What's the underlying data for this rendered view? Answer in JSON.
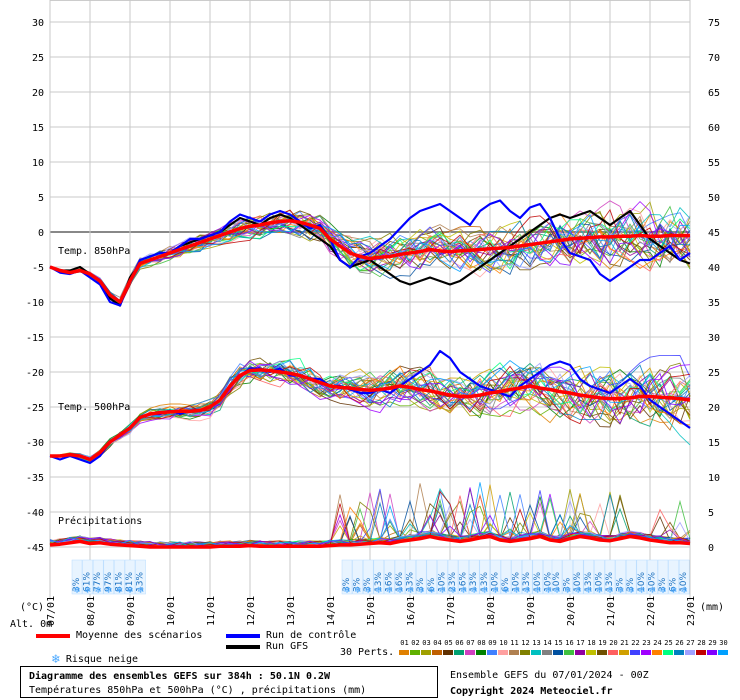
{
  "chart_data": {
    "type": "line",
    "title": "Diagramme des ensembles GEFS sur 384h : 50.1N 0.2W",
    "subtitle": "Températures 850hPa et 500hPa (°C) , précipitations (mm)",
    "y_left_unit": "(°C)",
    "y_right_unit": "(mm)",
    "y_left_ticks": [
      30,
      25,
      20,
      15,
      10,
      5,
      0,
      -5,
      -10,
      -15,
      -20,
      -25,
      -30,
      -35,
      -40,
      -45
    ],
    "y_right_ticks": [
      75,
      70,
      65,
      60,
      55,
      50,
      45,
      40,
      35,
      30,
      25,
      20,
      15,
      10,
      5,
      0
    ],
    "x_ticks": [
      "07/01",
      "08/01",
      "09/01",
      "10/01",
      "11/01",
      "12/01",
      "13/01",
      "14/01",
      "15/01",
      "16/01",
      "17/01",
      "18/01",
      "19/01",
      "20/01",
      "21/01",
      "22/01",
      "23/01"
    ],
    "x_start": "07/01 00Z",
    "x_step_hours": 6,
    "ylim_left": [
      -45,
      30
    ],
    "annotations": [
      "Temp. 850hPa",
      "Temp. 500hPa",
      "Précipitations"
    ],
    "grid": true,
    "series": [
      {
        "name": "Moyenne des scénarios",
        "color": "#ff0000",
        "level": "850hPa",
        "y": [
          -5.0,
          -5.5,
          -5.8,
          -5.5,
          -6.0,
          -7.0,
          -9.0,
          -10.0,
          -7.0,
          -4.5,
          -4.0,
          -3.5,
          -3.0,
          -2.5,
          -2.0,
          -1.5,
          -1.0,
          -0.5,
          0.0,
          0.5,
          0.8,
          1.0,
          1.3,
          1.5,
          1.6,
          1.4,
          1.0,
          0.5,
          -1.0,
          -2.0,
          -3.0,
          -3.5,
          -3.8,
          -3.6,
          -3.5,
          -3.2,
          -3.0,
          -2.8,
          -2.5,
          -2.7,
          -2.8,
          -2.7,
          -2.6,
          -2.5,
          -2.4,
          -2.3,
          -2.2,
          -2.0,
          -1.8,
          -1.6,
          -1.4,
          -1.2,
          -1.0,
          -0.9,
          -0.8,
          -0.7,
          -0.7,
          -0.6,
          -0.6,
          -0.5,
          -0.6,
          -0.6,
          -0.5,
          -0.5,
          -0.5
        ]
      },
      {
        "name": "Moyenne des scénarios",
        "color": "#ff0000",
        "level": "500hPa",
        "y": [
          -32.0,
          -32.0,
          -31.8,
          -32.0,
          -32.5,
          -31.5,
          -30.0,
          -29.0,
          -28.0,
          -26.5,
          -26.0,
          -25.8,
          -25.7,
          -25.6,
          -25.6,
          -25.5,
          -25.0,
          -24.0,
          -22.0,
          -20.5,
          -19.8,
          -19.7,
          -19.8,
          -20.0,
          -20.2,
          -20.5,
          -21.0,
          -21.5,
          -22.0,
          -22.2,
          -22.3,
          -22.5,
          -22.6,
          -22.5,
          -22.3,
          -22.0,
          -22.2,
          -22.5,
          -22.7,
          -23.0,
          -23.3,
          -23.5,
          -23.5,
          -23.3,
          -23.0,
          -22.8,
          -22.5,
          -22.3,
          -22.0,
          -22.3,
          -22.5,
          -22.8,
          -23.0,
          -23.3,
          -23.5,
          -23.7,
          -23.8,
          -23.8,
          -23.7,
          -23.5,
          -23.5,
          -23.6,
          -23.7,
          -23.8,
          -24.0
        ]
      },
      {
        "name": "Moyenne des scénarios",
        "color": "#ff0000",
        "level": "précipitations (mm)",
        "y": [
          0.3,
          0.4,
          0.6,
          0.8,
          0.5,
          0.6,
          0.4,
          0.3,
          0.2,
          0.1,
          0.0,
          0.0,
          0.0,
          0.0,
          0.0,
          0.0,
          0.0,
          0.1,
          0.1,
          0.1,
          0.2,
          0.1,
          0.1,
          0.1,
          0.1,
          0.1,
          0.1,
          0.1,
          0.2,
          0.3,
          0.3,
          0.4,
          0.5,
          0.6,
          0.5,
          0.8,
          1.0,
          1.2,
          1.5,
          1.2,
          1.0,
          0.8,
          1.0,
          1.3,
          1.5,
          1.0,
          0.8,
          1.0,
          1.2,
          1.5,
          1.0,
          0.8,
          1.2,
          1.5,
          1.3,
          1.0,
          0.9,
          1.2,
          1.5,
          1.3,
          1.0,
          0.8,
          0.6,
          0.6,
          0.5
        ]
      },
      {
        "name": "Run de contrôle",
        "color": "#0000ff",
        "level": "850hPa",
        "y": [
          -5.0,
          -5.8,
          -6.0,
          -5.5,
          -6.5,
          -7.5,
          -10.0,
          -10.5,
          -7.0,
          -4.0,
          -3.5,
          -3.0,
          -3.0,
          -2.0,
          -1.0,
          -1.0,
          -0.5,
          0.0,
          1.5,
          2.5,
          2.0,
          1.5,
          2.5,
          3.0,
          2.5,
          1.5,
          0.5,
          1.0,
          -1.0,
          -4.0,
          -5.0,
          -3.5,
          -3.0,
          -2.0,
          -1.0,
          0.5,
          2.0,
          3.0,
          3.5,
          4.0,
          3.0,
          2.0,
          1.0,
          3.0,
          4.0,
          4.5,
          3.0,
          2.0,
          3.5,
          4.0,
          2.0,
          -1.0,
          -3.0,
          -3.5,
          -4.0,
          -6.0,
          -7.0,
          -6.0,
          -5.0,
          -4.0,
          -4.0,
          -3.0,
          -2.0,
          -4.0,
          -3.0
        ]
      },
      {
        "name": "Run de contrôle",
        "color": "#0000ff",
        "level": "500hPa",
        "y": [
          -32.0,
          -32.5,
          -32.0,
          -32.5,
          -33.0,
          -32.0,
          -30.0,
          -29.0,
          -28.0,
          -26.5,
          -26.0,
          -26.0,
          -25.5,
          -26.0,
          -25.5,
          -25.5,
          -25.0,
          -24.0,
          -22.0,
          -20.5,
          -19.5,
          -19.5,
          -20.0,
          -19.5,
          -20.5,
          -20.5,
          -21.0,
          -21.0,
          -22.0,
          -22.0,
          -22.5,
          -23.0,
          -23.0,
          -22.5,
          -23.0,
          -22.0,
          -21.0,
          -20.0,
          -19.0,
          -17.0,
          -18.0,
          -20.0,
          -21.0,
          -22.0,
          -22.5,
          -23.0,
          -23.5,
          -22.0,
          -21.0,
          -20.0,
          -19.0,
          -18.5,
          -19.0,
          -21.0,
          -22.0,
          -22.5,
          -23.0,
          -22.0,
          -21.0,
          -22.0,
          -24.0,
          -25.0,
          -26.0,
          -27.0,
          -28.0
        ]
      },
      {
        "name": "Run GFS",
        "color": "#000000",
        "level": "850hPa",
        "y": [
          -5.0,
          -5.5,
          -5.5,
          -5.0,
          -6.0,
          -7.0,
          -9.5,
          -10.5,
          -6.5,
          -4.5,
          -4.0,
          -3.5,
          -3.0,
          -2.0,
          -1.5,
          -1.0,
          -0.5,
          0.0,
          1.0,
          2.0,
          1.5,
          1.0,
          2.0,
          2.5,
          2.0,
          1.0,
          0.0,
          -1.0,
          -2.0,
          -4.0,
          -5.0,
          -4.5,
          -4.0,
          -5.0,
          -6.0,
          -7.0,
          -7.5,
          -7.0,
          -6.5,
          -7.0,
          -7.5,
          -7.0,
          -6.0,
          -5.0,
          -4.0,
          -3.0,
          -2.0,
          -1.0,
          0.0,
          1.0,
          2.0,
          2.5,
          2.0,
          2.5,
          3.0,
          2.0,
          1.0,
          2.0,
          3.0,
          1.0,
          -1.0,
          -2.0,
          -3.0,
          -4.0,
          -4.5
        ]
      },
      {
        "name": "Run GFS",
        "color": "#000000",
        "level": "500hPa",
        "y": [
          -32.0,
          -32.0,
          -31.8,
          -32.0,
          -32.5,
          -31.5,
          -30.0,
          -29.0,
          -28.0,
          -26.5,
          -26.0,
          -25.8,
          -25.7,
          -25.6,
          -25.6,
          -25.5,
          -25.0,
          -24.0,
          -22.0,
          -20.5,
          -19.5,
          -19.5,
          -19.8,
          -20.0,
          -20.2,
          -20.5,
          -21.0,
          -21.5,
          -22.0,
          -22.2,
          -22.3,
          -22.5,
          -22.6,
          -22.5,
          -23.0,
          -24.0,
          -23.5,
          -23.0,
          -22.5,
          -23.0,
          -24.0,
          -25.0,
          -24.0,
          -23.0,
          -22.0,
          -21.0,
          -21.5,
          -22.0,
          -22.5,
          -23.0,
          -24.0,
          -25.0,
          -26.0,
          -26.0,
          -25.0,
          -24.0,
          -25.0,
          -26.0,
          -27.0,
          -28.0,
          -29.0,
          -29.5,
          -30.0,
          -30.5,
          -31.0
        ]
      }
    ]
  },
  "snow_risk": {
    "label": "Risque neige",
    "groups": [
      [
        "3%",
        "61%",
        "77%",
        "97%",
        "81%",
        "81%",
        "13%"
      ],
      [
        "3%",
        "3%",
        "3%",
        "13%",
        "16%",
        "16%",
        "13%",
        "3%",
        "6%",
        "10%",
        "23%",
        "16%",
        "13%",
        "13%",
        "10%",
        "6%",
        "10%",
        "13%",
        "10%",
        "10%"
      ],
      [
        "10%",
        "3%",
        "10%",
        "13%",
        "10%",
        "13%",
        "3%",
        "3%",
        "10%",
        "10%",
        "3%",
        "6%",
        "10%"
      ]
    ]
  },
  "altitude_label": "Alt. 0m",
  "legend": {
    "mean": "Moyenne des scénarios",
    "control": "Run de contrôle",
    "gfs": "Run GFS",
    "snow": "Risque neige",
    "perts_label": "30 Perts.",
    "perts_numbers": [
      "01",
      "02",
      "03",
      "04",
      "05",
      "06",
      "07",
      "08",
      "09",
      "10",
      "11",
      "12",
      "13",
      "14",
      "15",
      "16",
      "17",
      "18",
      "19",
      "20",
      "21",
      "22",
      "23",
      "24",
      "25",
      "26",
      "27",
      "28",
      "29",
      "30"
    ],
    "perts_colors": [
      "#e08000",
      "#60b000",
      "#a0a000",
      "#c06000",
      "#603000",
      "#00a070",
      "#d040c0",
      "#008000",
      "#4080ff",
      "#ffa0a0",
      "#b08050",
      "#808000",
      "#00c0c0",
      "#808080",
      "#0050a0",
      "#40c040",
      "#9000a0",
      "#c0c000",
      "#705000",
      "#ff6060",
      "#d0a000",
      "#4040ff",
      "#a000ff",
      "#ff8000",
      "#00ff80",
      "#0080c0",
      "#a0a0ff",
      "#c00000",
      "#8000ff",
      "#00a0ff"
    ]
  },
  "footer": {
    "title": "Diagramme des ensembles GEFS sur 384h : 50.1N 0.2W",
    "subtitle": "Températures 850hPa et 500hPa (°C) , précipitations (mm)",
    "run": "Ensemble GEFS du 07/01/2024 - 00Z",
    "copyright": "Copyright 2024 Meteociel.fr"
  }
}
